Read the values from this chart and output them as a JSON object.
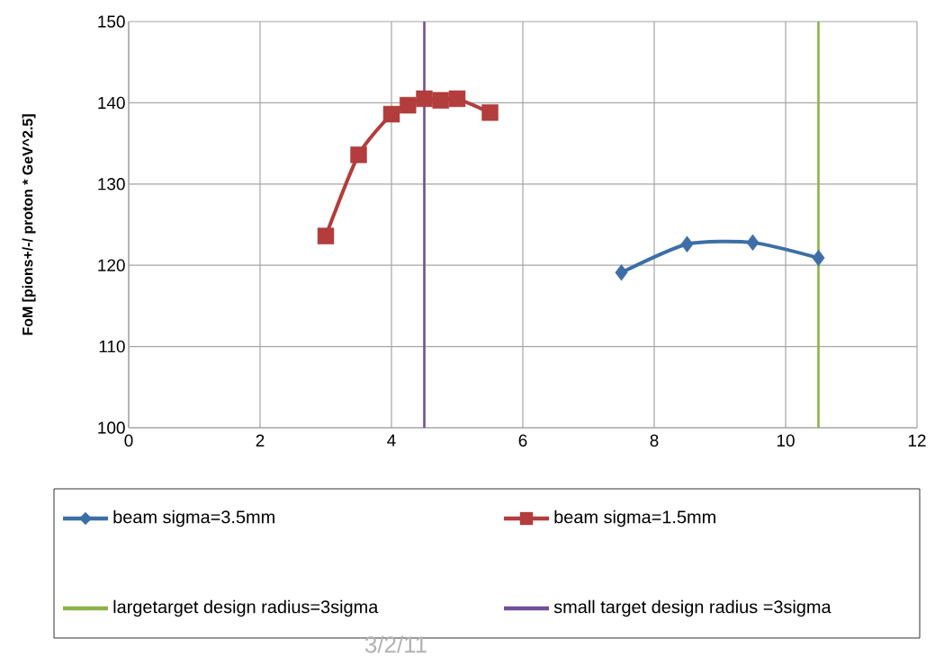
{
  "chart_data": {
    "type": "line",
    "ylabel": "**FoM [pions+/-/ proton * GeV^2.5]**",
    "xlim": [
      0,
      12
    ],
    "xticks": [
      0,
      2,
      4,
      6,
      8,
      10,
      12
    ],
    "ylim": [
      100,
      150
    ],
    "yticks": [
      100,
      110,
      120,
      130,
      140,
      150
    ],
    "grid": true,
    "legend": "bottom",
    "line_style": "solid",
    "series": [
      {
        "name": "beam sigma=3.5mm",
        "color": "#3d6fa6",
        "marker": "diamond",
        "x": [
          7.5,
          8.5,
          9.5,
          10.5
        ],
        "values": [
          119.1,
          122.6,
          122.8,
          120.9
        ]
      },
      {
        "name": "beam sigma=1.5mm",
        "color": "#b33c3c",
        "marker": "square",
        "x": [
          3,
          3.5,
          4,
          4.25,
          4.5,
          4.75,
          5,
          5.5
        ],
        "values": [
          123.6,
          133.6,
          138.6,
          139.7,
          140.5,
          140.3,
          140.5,
          138.8
        ]
      },
      {
        "name": "largetarget design radius=3sigma",
        "color": "#8bb34a",
        "marker": "none",
        "x": [
          10.5,
          10.5
        ],
        "values": [
          100,
          150
        ]
      },
      {
        "name": "small target design radius =3sigma",
        "color": "#6f4f9a",
        "marker": "none",
        "x": [
          4.5,
          4.5
        ],
        "values": [
          100,
          150
        ]
      }
    ],
    "annotations": [
      "3/2/11"
    ]
  }
}
